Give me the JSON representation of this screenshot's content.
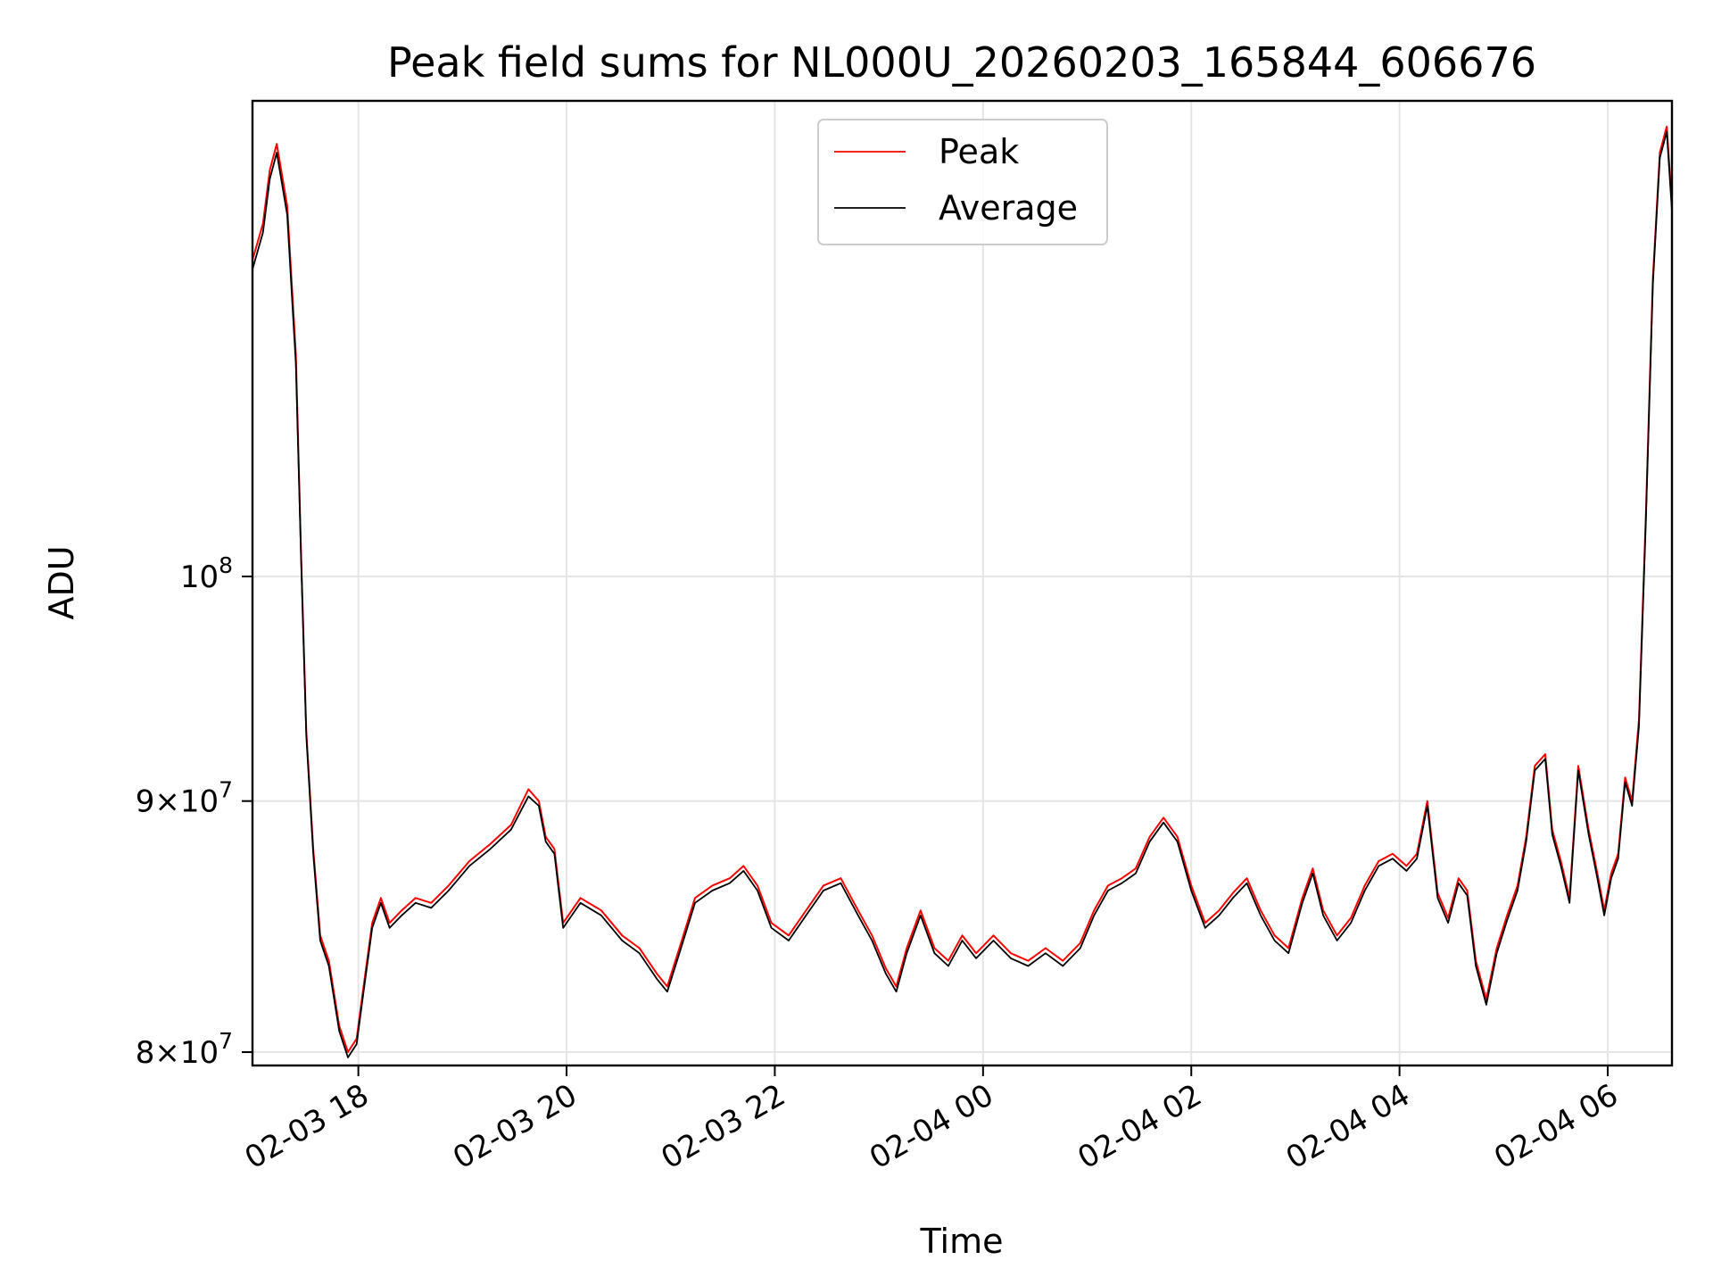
{
  "chart_data": {
    "type": "line",
    "title": "Peak field sums for NL000U_20260203_165844_606676",
    "xlabel": "Time",
    "ylabel": "ADU",
    "yscale": "log",
    "ylim": [
      79500000,
      125000000
    ],
    "xlim": [
      "02-03 16:59",
      "02-04 06:37"
    ],
    "grid": true,
    "legend_position": "upper center",
    "x_ticks": [
      "02-03 18",
      "02-03 20",
      "02-03 22",
      "02-04 00",
      "02-04 02",
      "02-04 04",
      "02-04 06"
    ],
    "y_ticks": [
      {
        "value": 80000000,
        "mantissa": "8",
        "exponent": "7"
      },
      {
        "value": 90000000,
        "mantissa": "9",
        "exponent": "7"
      },
      {
        "value": 100000000,
        "mantissa": "",
        "exponent": "8"
      }
    ],
    "series": [
      {
        "name": "Peak",
        "color": "#ff0000",
        "x": [
          "02-03 16:59",
          "02-03 17:05",
          "02-03 17:09",
          "02-03 17:13",
          "02-03 17:19",
          "02-03 17:24",
          "02-03 17:27",
          "02-03 17:30",
          "02-03 17:34",
          "02-03 17:38",
          "02-03 17:43",
          "02-03 17:49",
          "02-03 17:54",
          "02-03 17:59",
          "02-03 18:03",
          "02-03 18:08",
          "02-03 18:13",
          "02-03 18:18",
          "02-03 18:25",
          "02-03 18:33",
          "02-03 18:42",
          "02-03 18:52",
          "02-03 19:04",
          "02-03 19:16",
          "02-03 19:28",
          "02-03 19:38",
          "02-03 19:44",
          "02-03 19:48",
          "02-03 19:53",
          "02-03 19:58",
          "02-03 20:08",
          "02-03 20:20",
          "02-03 20:32",
          "02-03 20:42",
          "02-03 20:52",
          "02-03 20:58",
          "02-03 21:05",
          "02-03 21:14",
          "02-03 21:24",
          "02-03 21:34",
          "02-03 21:42",
          "02-03 21:50",
          "02-03 21:58",
          "02-03 22:08",
          "02-03 22:18",
          "02-03 22:28",
          "02-03 22:38",
          "02-03 22:48",
          "02-03 22:56",
          "02-03 23:04",
          "02-03 23:10",
          "02-03 23:16",
          "02-03 23:24",
          "02-03 23:32",
          "02-03 23:40",
          "02-03 23:48",
          "02-03 23:56",
          "02-04 00:06",
          "02-04 00:16",
          "02-04 00:26",
          "02-04 00:36",
          "02-04 00:46",
          "02-04 00:56",
          "02-04 01:04",
          "02-04 01:12",
          "02-04 01:20",
          "02-04 01:28",
          "02-04 01:36",
          "02-04 01:44",
          "02-04 01:52",
          "02-04 02:00",
          "02-04 02:08",
          "02-04 02:16",
          "02-04 02:24",
          "02-04 02:32",
          "02-04 02:40",
          "02-04 02:48",
          "02-04 02:56",
          "02-04 03:04",
          "02-04 03:10",
          "02-04 03:16",
          "02-04 03:24",
          "02-04 03:32",
          "02-04 03:40",
          "02-04 03:48",
          "02-04 03:56",
          "02-04 04:04",
          "02-04 04:10",
          "02-04 04:16",
          "02-04 04:22",
          "02-04 04:28",
          "02-04 04:34",
          "02-04 04:39",
          "02-04 04:44",
          "02-04 04:50",
          "02-04 04:56",
          "02-04 05:02",
          "02-04 05:08",
          "02-04 05:13",
          "02-04 05:18",
          "02-04 05:24",
          "02-04 05:28",
          "02-04 05:33",
          "02-04 05:38",
          "02-04 05:43",
          "02-04 05:49",
          "02-04 05:54",
          "02-04 05:58",
          "02-04 06:02",
          "02-04 06:06",
          "02-04 06:10",
          "02-04 06:14",
          "02-04 06:18",
          "02-04 06:22",
          "02-04 06:26",
          "02-04 06:30",
          "02-04 06:34",
          "02-04 06:37"
        ],
        "y": [
          116000000,
          118000000,
          121000000,
          122500000,
          119000000,
          111000000,
          101000000,
          93000000,
          88000000,
          84500000,
          83500000,
          81000000,
          80000000,
          80500000,
          82500000,
          85000000,
          86000000,
          85000000,
          85500000,
          86000000,
          85800000,
          86500000,
          87500000,
          88200000,
          89000000,
          90500000,
          90000000,
          88500000,
          88000000,
          85000000,
          86000000,
          85500000,
          84500000,
          84000000,
          83000000,
          82500000,
          84000000,
          86000000,
          86500000,
          86800000,
          87300000,
          86500000,
          85000000,
          84500000,
          85500000,
          86500000,
          86800000,
          85500000,
          84500000,
          83200000,
          82500000,
          84000000,
          85500000,
          84000000,
          83500000,
          84500000,
          83800000,
          84500000,
          83800000,
          83500000,
          84000000,
          83500000,
          84200000,
          85500000,
          86500000,
          86800000,
          87200000,
          88500000,
          89300000,
          88500000,
          86500000,
          85000000,
          85500000,
          86200000,
          86800000,
          85500000,
          84500000,
          84000000,
          86000000,
          87200000,
          85500000,
          84500000,
          85200000,
          86500000,
          87500000,
          87800000,
          87300000,
          87800000,
          90000000,
          86200000,
          85200000,
          86800000,
          86300000,
          83500000,
          82000000,
          84000000,
          85300000,
          86500000,
          88500000,
          91500000,
          92000000,
          88800000,
          87500000,
          86000000,
          91500000,
          88800000,
          87000000,
          85500000,
          87000000,
          87800000,
          91000000,
          90000000,
          93500000,
          103000000,
          115000000,
          122000000,
          123500000,
          119000000
        ],
        "y_unit": "ADU"
      },
      {
        "name": "Average",
        "color": "#000000",
        "x": [
          "02-03 16:59",
          "02-03 17:05",
          "02-03 17:09",
          "02-03 17:13",
          "02-03 17:19",
          "02-03 17:24",
          "02-03 17:27",
          "02-03 17:30",
          "02-03 17:34",
          "02-03 17:38",
          "02-03 17:43",
          "02-03 17:49",
          "02-03 17:54",
          "02-03 17:59",
          "02-03 18:03",
          "02-03 18:08",
          "02-03 18:13",
          "02-03 18:18",
          "02-03 18:25",
          "02-03 18:33",
          "02-03 18:42",
          "02-03 18:52",
          "02-03 19:04",
          "02-03 19:16",
          "02-03 19:28",
          "02-03 19:38",
          "02-03 19:44",
          "02-03 19:48",
          "02-03 19:53",
          "02-03 19:58",
          "02-03 20:08",
          "02-03 20:20",
          "02-03 20:32",
          "02-03 20:42",
          "02-03 20:52",
          "02-03 20:58",
          "02-03 21:05",
          "02-03 21:14",
          "02-03 21:24",
          "02-03 21:34",
          "02-03 21:42",
          "02-03 21:50",
          "02-03 21:58",
          "02-03 22:08",
          "02-03 22:18",
          "02-03 22:28",
          "02-03 22:38",
          "02-03 22:48",
          "02-03 22:56",
          "02-03 23:04",
          "02-03 23:10",
          "02-03 23:16",
          "02-03 23:24",
          "02-03 23:32",
          "02-03 23:40",
          "02-03 23:48",
          "02-03 23:56",
          "02-04 00:06",
          "02-04 00:16",
          "02-04 00:26",
          "02-04 00:36",
          "02-04 00:46",
          "02-04 00:56",
          "02-04 01:04",
          "02-04 01:12",
          "02-04 01:20",
          "02-04 01:28",
          "02-04 01:36",
          "02-04 01:44",
          "02-04 01:52",
          "02-04 02:00",
          "02-04 02:08",
          "02-04 02:16",
          "02-04 02:24",
          "02-04 02:32",
          "02-04 02:40",
          "02-04 02:48",
          "02-04 02:56",
          "02-04 03:04",
          "02-04 03:10",
          "02-04 03:16",
          "02-04 03:24",
          "02-04 03:32",
          "02-04 03:40",
          "02-04 03:48",
          "02-04 03:56",
          "02-04 04:04",
          "02-04 04:10",
          "02-04 04:16",
          "02-04 04:22",
          "02-04 04:28",
          "02-04 04:34",
          "02-04 04:39",
          "02-04 04:44",
          "02-04 04:50",
          "02-04 04:56",
          "02-04 05:02",
          "02-04 05:08",
          "02-04 05:13",
          "02-04 05:18",
          "02-04 05:24",
          "02-04 05:28",
          "02-04 05:33",
          "02-04 05:38",
          "02-04 05:43",
          "02-04 05:49",
          "02-04 05:54",
          "02-04 05:58",
          "02-04 06:02",
          "02-04 06:06",
          "02-04 06:10",
          "02-04 06:14",
          "02-04 06:18",
          "02-04 06:22",
          "02-04 06:26",
          "02-04 06:30",
          "02-04 06:34",
          "02-04 06:37"
        ],
        "y": [
          115500000,
          117500000,
          120500000,
          122000000,
          118500000,
          110500000,
          100800000,
          92800000,
          87800000,
          84300000,
          83300000,
          80800000,
          79800000,
          80300000,
          82300000,
          84800000,
          85800000,
          84800000,
          85300000,
          85800000,
          85600000,
          86300000,
          87300000,
          88000000,
          88800000,
          90200000,
          89800000,
          88300000,
          87800000,
          84800000,
          85800000,
          85300000,
          84300000,
          83800000,
          82800000,
          82300000,
          83800000,
          85800000,
          86300000,
          86600000,
          87100000,
          86300000,
          84800000,
          84300000,
          85300000,
          86300000,
          86600000,
          85300000,
          84300000,
          83000000,
          82300000,
          83800000,
          85300000,
          83800000,
          83300000,
          84300000,
          83600000,
          84300000,
          83600000,
          83300000,
          83800000,
          83300000,
          84000000,
          85300000,
          86300000,
          86600000,
          87000000,
          88300000,
          89100000,
          88300000,
          86300000,
          84800000,
          85300000,
          86000000,
          86600000,
          85300000,
          84300000,
          83800000,
          85800000,
          87000000,
          85300000,
          84300000,
          85000000,
          86300000,
          87300000,
          87600000,
          87100000,
          87600000,
          89800000,
          86000000,
          85000000,
          86600000,
          86100000,
          83300000,
          81800000,
          83800000,
          85100000,
          86300000,
          88300000,
          91300000,
          91800000,
          88600000,
          87300000,
          85800000,
          91300000,
          88600000,
          86800000,
          85300000,
          86800000,
          87600000,
          90800000,
          89800000,
          93200000,
          102700000,
          114700000,
          121700000,
          123200000,
          118700000
        ],
        "y_unit": "ADU"
      }
    ]
  }
}
